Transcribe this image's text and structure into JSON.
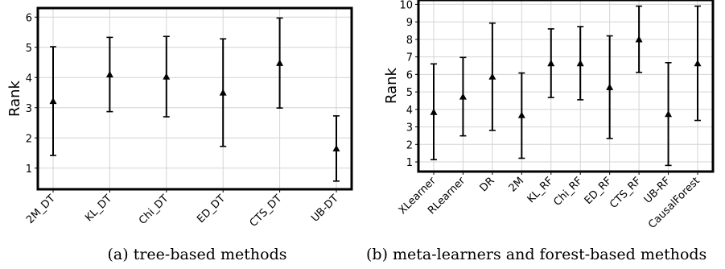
{
  "chart_data": [
    {
      "type": "errorbar",
      "panel_caption": "(a) tree-based methods",
      "ylabel": "Rank",
      "xlabel": "",
      "ylim": [
        0.3,
        6.3
      ],
      "yticks": [
        1,
        2,
        3,
        4,
        5,
        6
      ],
      "grid": true,
      "categories": [
        "2M_DT",
        "KL_DT",
        "Chi_DT",
        "ED_DT",
        "CTS_DT",
        "UB-DT"
      ],
      "mean": [
        3.22,
        4.1,
        4.03,
        3.5,
        4.48,
        1.65
      ],
      "lower": [
        1.42,
        2.87,
        2.7,
        1.72,
        2.99,
        0.57
      ],
      "upper": [
        5.02,
        5.33,
        5.36,
        5.28,
        5.97,
        2.73
      ]
    },
    {
      "type": "errorbar",
      "panel_caption": "(b) meta-learners and forest-based methods",
      "ylabel": "Rank",
      "xlabel": "",
      "ylim": [
        0.45,
        10.25
      ],
      "yticks": [
        1,
        2,
        3,
        4,
        5,
        6,
        7,
        8,
        9,
        10
      ],
      "grid": true,
      "categories": [
        "XLearner",
        "RLearner",
        "DR",
        "2M",
        "KL_RF",
        "Chi_RF",
        "ED_RF",
        "CTS_RF",
        "UB-RF",
        "CausalForest"
      ],
      "mean": [
        3.85,
        4.73,
        5.87,
        3.67,
        6.63,
        6.63,
        5.27,
        8.0,
        3.73,
        6.63
      ],
      "lower": [
        1.13,
        2.49,
        2.8,
        1.21,
        4.68,
        4.55,
        2.34,
        6.11,
        0.8,
        3.37
      ],
      "upper": [
        6.6,
        6.97,
        8.93,
        6.08,
        8.6,
        8.73,
        8.2,
        9.9,
        6.67,
        9.9
      ]
    }
  ]
}
